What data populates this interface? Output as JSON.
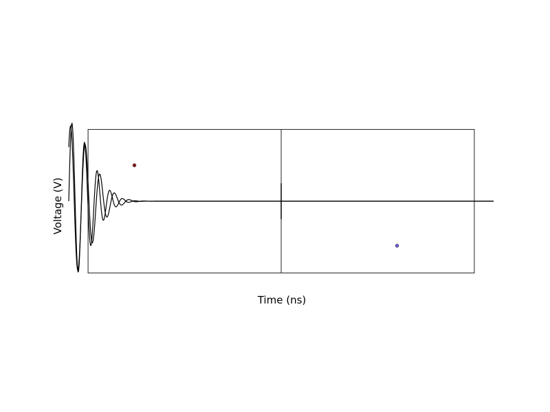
{
  "chart_data": {
    "type": "line",
    "xlabel": "Time (ns)",
    "ylabel": "Voltage (V)",
    "grid": false,
    "legend": "none",
    "series": [
      {
        "kind": "ringdown",
        "color": "#000000",
        "amplitude": 1.1,
        "decay": 0.05,
        "frequency": 0.095
      },
      {
        "kind": "ringdown",
        "color": "#000000",
        "amplitude": 1.05,
        "decay": 0.045,
        "frequency": 0.082
      },
      {
        "kind": "spike",
        "color": "#000000",
        "x": 50,
        "y_range": [
          -0.25,
          0.25
        ]
      }
    ],
    "points": [
      {
        "x": 12,
        "y": 0.5,
        "color": "#8b1a1a"
      },
      {
        "x": 80,
        "y": -0.62,
        "color": "#6a5acd"
      }
    ],
    "xlim": [
      -5,
      105
    ],
    "ylim": [
      -1.1,
      1.1
    ],
    "frame": {
      "x_range": [
        0,
        100
      ],
      "y_range": [
        -1,
        1
      ],
      "divider_x": 50
    }
  }
}
